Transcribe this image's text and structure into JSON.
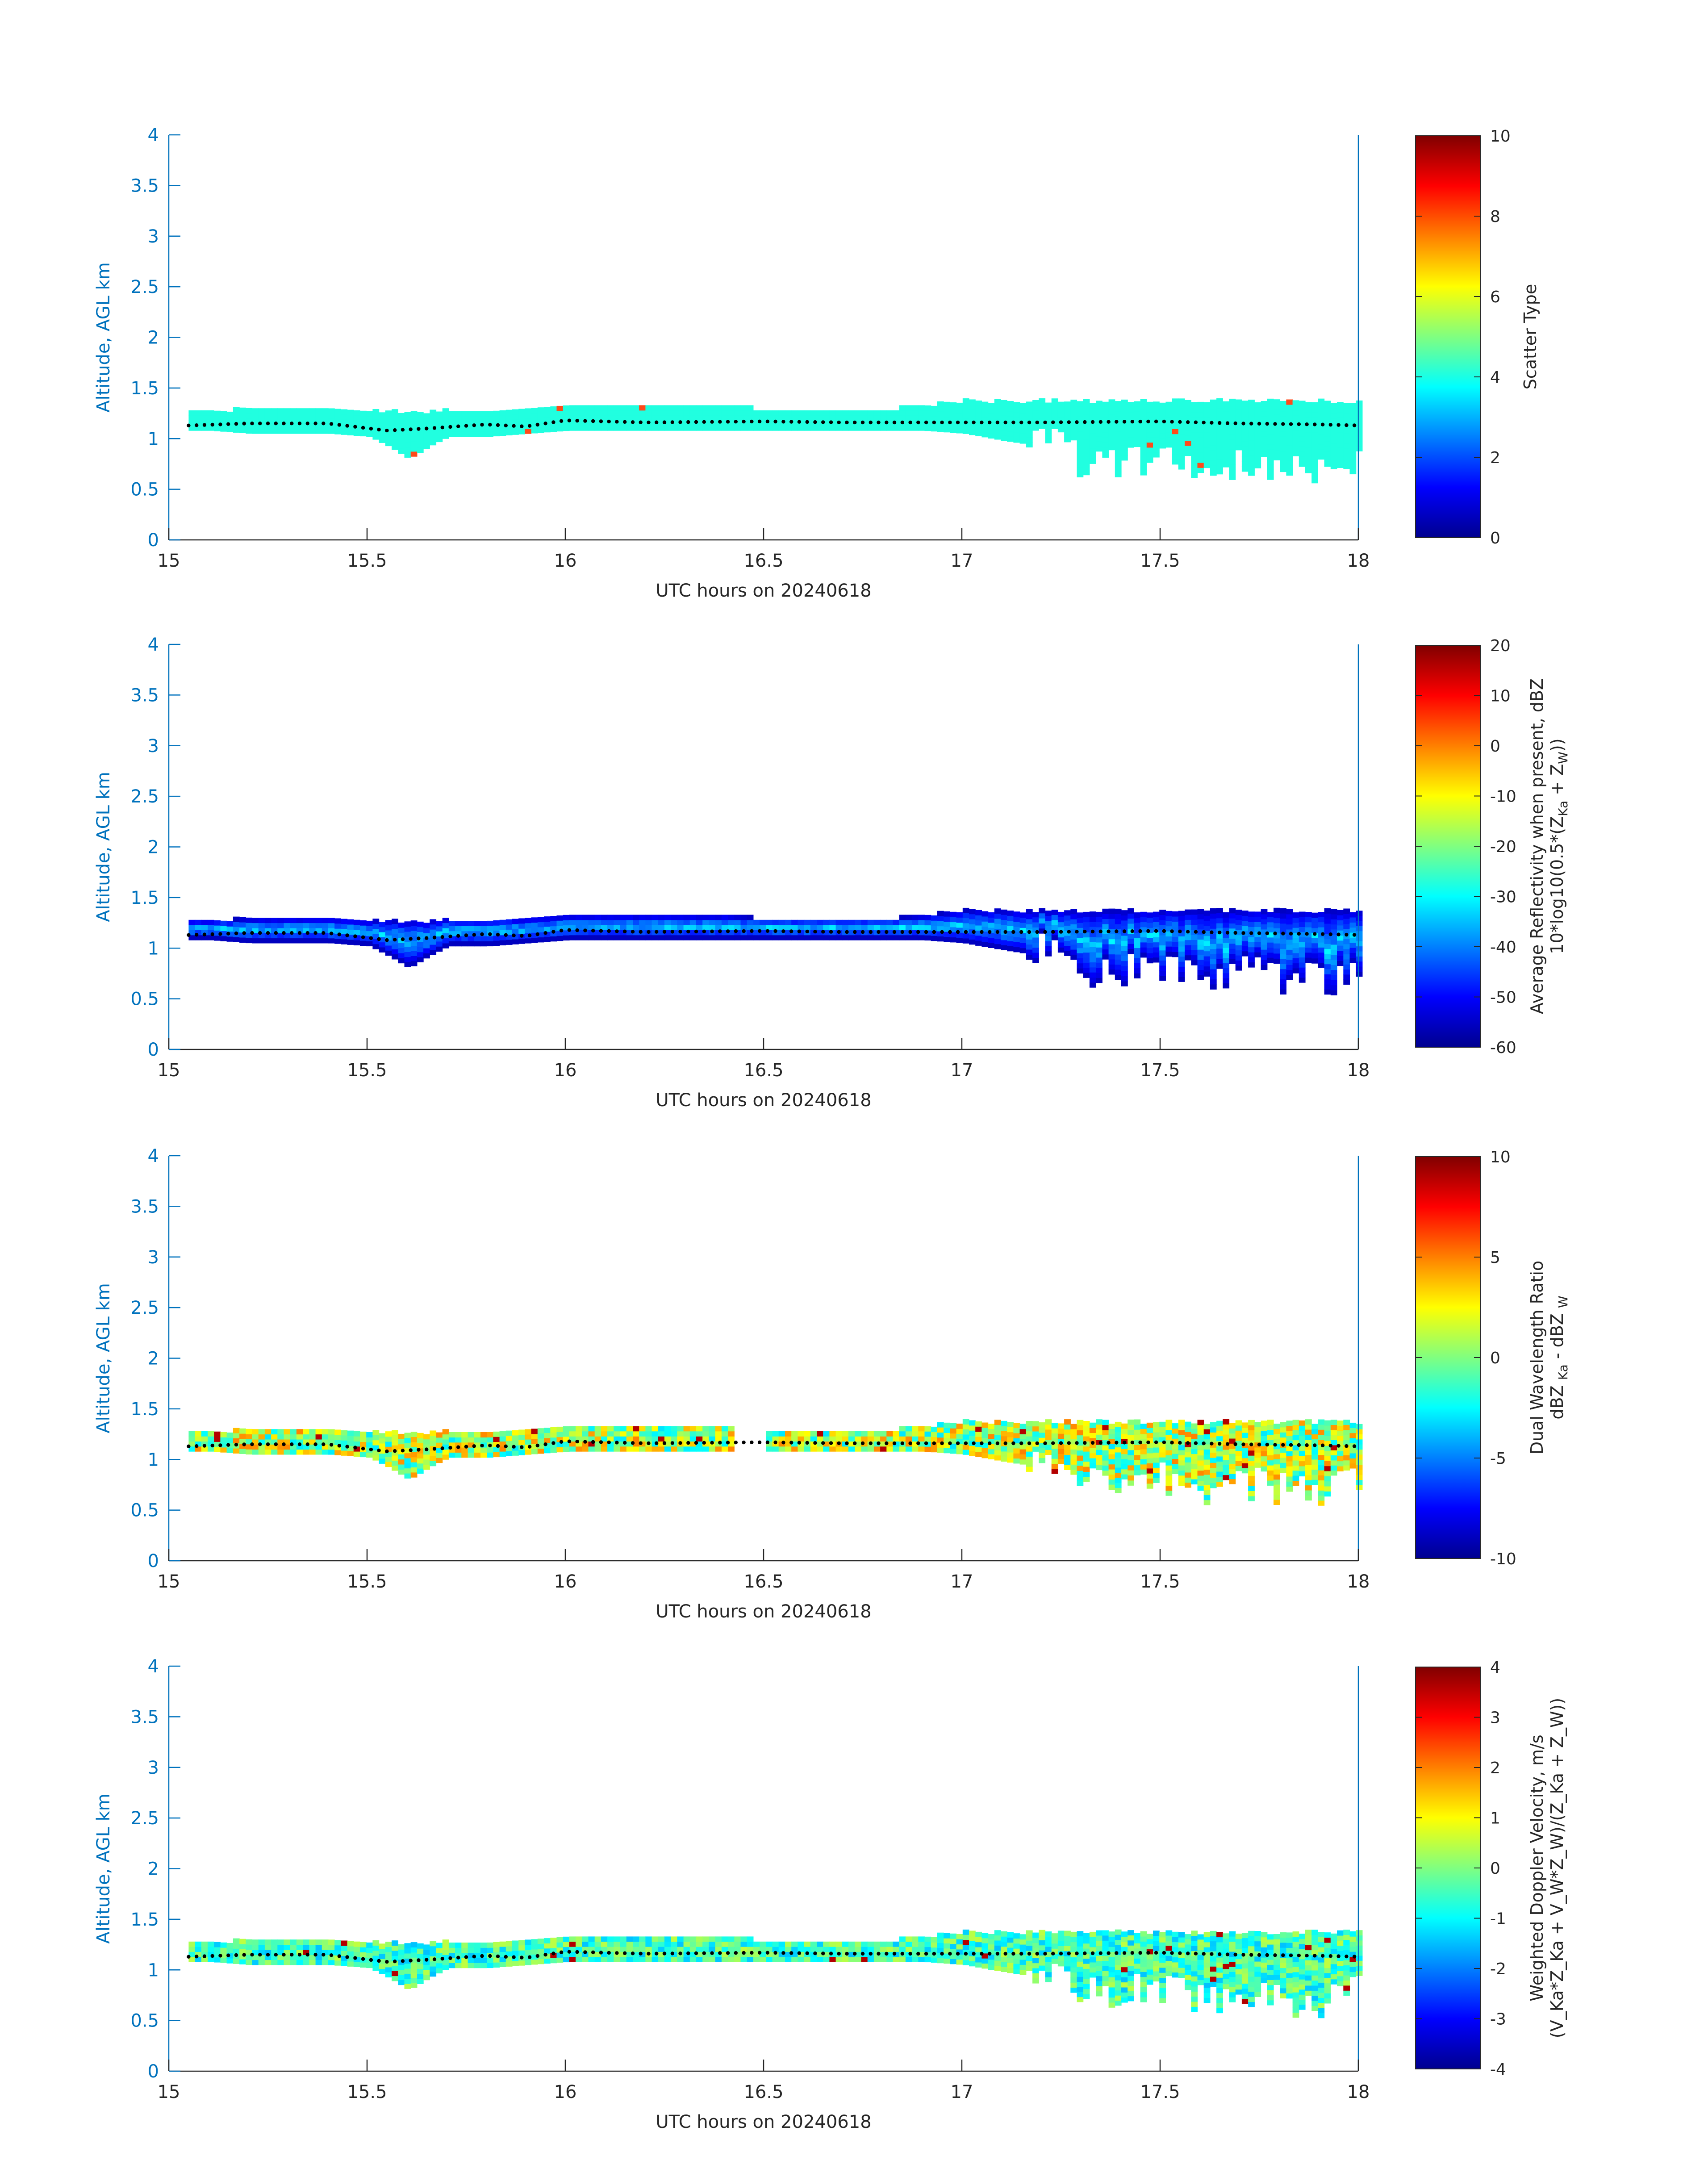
{
  "colors": {
    "axis_y": "#0072BD",
    "axis_x": "#262626",
    "scatter_fill": "#21FFE0",
    "ml_dots": "#000000"
  },
  "chart_data": [
    {
      "type": "heatmap",
      "panel": "scatter-type",
      "xlabel": "UTC hours on 20240618",
      "ylabel": "Altitude, AGL km",
      "xlim": [
        15,
        18
      ],
      "ylim": [
        0,
        4
      ],
      "x_ticks": [
        "15",
        "15.5",
        "16",
        "16.5",
        "17",
        "17.5",
        "18"
      ],
      "y_ticks": [
        "0",
        "0.5",
        "1",
        "1.5",
        "2",
        "2.5",
        "3",
        "3.5",
        "4"
      ],
      "colorbar": {
        "label_lines": [
          "Scatter Type"
        ],
        "lim": [
          0,
          10
        ],
        "ticks": [
          "0",
          "2",
          "4",
          "6",
          "8",
          "10"
        ]
      },
      "dominant_value": 3.5,
      "cloud_profile": {
        "x": [
          15.05,
          15.1,
          15.2,
          15.3,
          15.4,
          15.5,
          15.55,
          15.6,
          15.65,
          15.7,
          15.8,
          15.9,
          16.0,
          16.1,
          16.2,
          16.3,
          16.4,
          16.5,
          16.6,
          16.7,
          16.8,
          16.9,
          17.0,
          17.1,
          17.2,
          17.3,
          17.4,
          17.5,
          17.6,
          17.7,
          17.8,
          17.9,
          18.0
        ],
        "top_km": [
          1.25,
          1.25,
          1.27,
          1.27,
          1.27,
          1.25,
          1.25,
          1.25,
          1.25,
          1.27,
          1.27,
          1.27,
          1.3,
          1.3,
          1.3,
          1.3,
          1.3,
          1.27,
          1.27,
          1.27,
          1.27,
          1.3,
          1.35,
          1.35,
          1.35,
          1.35,
          1.35,
          1.35,
          1.35,
          1.35,
          1.35,
          1.35,
          1.35
        ],
        "bottom_km": [
          1.08,
          1.08,
          1.05,
          1.05,
          1.05,
          1.02,
          0.92,
          0.8,
          0.92,
          1.02,
          1.02,
          1.05,
          1.08,
          1.08,
          1.08,
          1.08,
          1.08,
          1.08,
          1.08,
          1.08,
          1.08,
          1.08,
          1.05,
          0.98,
          0.92,
          0.7,
          0.72,
          0.75,
          0.62,
          0.7,
          0.65,
          0.6,
          0.72
        ]
      },
      "melting_level": {
        "x": [
          15.05,
          15.2,
          15.4,
          15.55,
          15.65,
          15.8,
          15.9,
          16.0,
          16.2,
          16.5,
          16.7,
          17.0,
          17.2,
          17.5,
          17.7,
          17.9,
          18.0
        ],
        "y": [
          1.13,
          1.15,
          1.15,
          1.08,
          1.1,
          1.14,
          1.12,
          1.18,
          1.16,
          1.17,
          1.16,
          1.16,
          1.16,
          1.17,
          1.15,
          1.14,
          1.13
        ]
      }
    },
    {
      "type": "heatmap",
      "panel": "reflectivity",
      "xlabel": "UTC hours on 20240618",
      "ylabel": "Altitude, AGL km",
      "xlim": [
        15,
        18
      ],
      "ylim": [
        0,
        4
      ],
      "x_ticks": [
        "15",
        "15.5",
        "16",
        "16.5",
        "17",
        "17.5",
        "18"
      ],
      "y_ticks": [
        "0",
        "0.5",
        "1",
        "1.5",
        "2",
        "2.5",
        "3",
        "3.5",
        "4"
      ],
      "colorbar": {
        "label_lines": [
          "Average Reflectivity when present, dBZ",
          "10*log10(0.5*(Z"
        ],
        "label_suffix": {
          "sub1": "Ka",
          "mid": " + Z",
          "sub2": "W",
          "end": "))"
        },
        "lim": [
          -60,
          20
        ],
        "ticks": [
          "-60",
          "-50",
          "-40",
          "-30",
          "-20",
          "-10",
          "0",
          "10",
          "20"
        ]
      },
      "value_range": [
        -55,
        -30
      ]
    },
    {
      "type": "heatmap",
      "panel": "dual-wavelength-ratio",
      "xlabel": "UTC hours on 20240618",
      "ylabel": "Altitude, AGL km",
      "xlim": [
        15,
        18
      ],
      "ylim": [
        0,
        4
      ],
      "x_ticks": [
        "15",
        "15.5",
        "16",
        "16.5",
        "17",
        "17.5",
        "18"
      ],
      "y_ticks": [
        "0",
        "0.5",
        "1",
        "1.5",
        "2",
        "2.5",
        "3",
        "3.5",
        "4"
      ],
      "colorbar": {
        "label_lines": [
          "Dual Wavelength Ratio"
        ],
        "label_second": {
          "a": "dBZ ",
          "sub1": "Ka",
          "b": " - dBZ ",
          "sub2": "W"
        },
        "lim": [
          -10,
          10
        ],
        "ticks": [
          "-10",
          "-5",
          "0",
          "5",
          "10"
        ]
      },
      "value_range": [
        -3,
        5
      ]
    },
    {
      "type": "heatmap",
      "panel": "doppler-velocity",
      "xlabel": "UTC hours on 20240618",
      "ylabel": "Altitude, AGL km",
      "xlim": [
        15,
        18
      ],
      "ylim": [
        0,
        4
      ],
      "x_ticks": [
        "15",
        "15.5",
        "16",
        "16.5",
        "17",
        "17.5",
        "18"
      ],
      "y_ticks": [
        "0",
        "0.5",
        "1",
        "1.5",
        "2",
        "2.5",
        "3",
        "3.5",
        "4"
      ],
      "colorbar": {
        "label_lines": [
          "Weighted Doppler Velocity, m/s"
        ],
        "label_second_text": "(V_Ka*Z_Ka + V_W*Z_W)/(Z_Ka + Z_W))",
        "lim": [
          -4,
          4
        ],
        "ticks": [
          "-4",
          "-3",
          "-2",
          "-1",
          "0",
          "1",
          "2",
          "3",
          "4"
        ]
      },
      "value_range": [
        -1.5,
        0.5
      ]
    }
  ]
}
